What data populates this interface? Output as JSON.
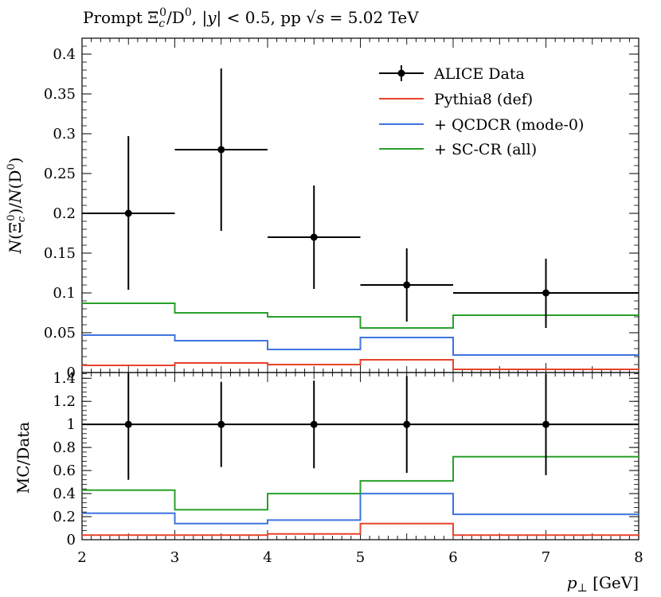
{
  "title": "Prompt Ξc0/D0, |y| < 0.5, pp √s = 5.02 TeV",
  "chart_data": [
    {
      "type": "line",
      "panel": "main",
      "ylabel": "N(Ξc0)/N(D0)",
      "xlim": [
        2,
        8
      ],
      "ylim": [
        0,
        0.42
      ],
      "bin_edges": [
        2,
        3,
        4,
        5,
        6,
        8
      ],
      "x_tick_labels": [
        "2",
        "3",
        "4",
        "5",
        "6",
        "7",
        "8"
      ],
      "y_ticks": [
        0,
        0.05,
        0.1,
        0.15,
        0.2,
        0.25,
        0.3,
        0.35,
        0.4
      ],
      "y_tick_labels": [
        "0",
        "0.05",
        "0.1",
        "0.15",
        "0.2",
        "0.25",
        "0.3",
        "0.35",
        "0.4"
      ],
      "data_points": {
        "name": "ALICE Data",
        "x": [
          2.5,
          3.5,
          4.5,
          5.5,
          7
        ],
        "y": [
          0.2,
          0.28,
          0.17,
          0.11,
          0.1
        ],
        "yerr_low": [
          0.096,
          0.102,
          0.065,
          0.046,
          0.044
        ],
        "yerr_high": [
          0.097,
          0.102,
          0.065,
          0.046,
          0.043
        ]
      },
      "series": [
        {
          "name": "Pythia8 (def)",
          "color": "#e8432a",
          "values": [
            0.009,
            0.012,
            0.01,
            0.016,
            0.004
          ]
        },
        {
          "name": "+ QCDCR (mode-0)",
          "color": "#3f73e0",
          "values": [
            0.047,
            0.04,
            0.029,
            0.044,
            0.022
          ]
        },
        {
          "name": "+ SC-CR (all)",
          "color": "#2aa02a",
          "values": [
            0.087,
            0.075,
            0.07,
            0.056,
            0.072
          ]
        }
      ],
      "legend_position": "top-right",
      "legend_labels": [
        "ALICE Data",
        "Pythia8 (def)",
        "+ QCDCR (mode-0)",
        "+ SC-CR (all)"
      ]
    },
    {
      "type": "line",
      "panel": "ratio",
      "ylabel": "MC/Data",
      "xlabel": "p⊥ [GeV]",
      "xlim": [
        2,
        8
      ],
      "ylim": [
        0,
        1.45
      ],
      "bin_edges": [
        2,
        3,
        4,
        5,
        6,
        8
      ],
      "y_ticks": [
        0,
        0.2,
        0.4,
        0.6,
        0.8,
        1,
        1.2,
        1.4
      ],
      "y_tick_labels": [
        "0",
        "0.2",
        "0.4",
        "0.6",
        "0.8",
        "1",
        "1.2",
        "1.4"
      ],
      "data_points": {
        "x": [
          2.5,
          3.5,
          4.5,
          5.5,
          7
        ],
        "y": [
          1,
          1,
          1,
          1,
          1
        ],
        "yerr_low": [
          0.48,
          0.37,
          0.38,
          0.42,
          0.44
        ],
        "yerr_high": [
          0.48,
          0.37,
          0.38,
          0.42,
          0.44
        ]
      },
      "series": [
        {
          "name": "Pythia8 (def)",
          "color": "#e8432a",
          "values": [
            0.04,
            0.04,
            0.05,
            0.14,
            0.04
          ]
        },
        {
          "name": "+ QCDCR (mode-0)",
          "color": "#3f73e0",
          "values": [
            0.23,
            0.14,
            0.17,
            0.4,
            0.22
          ]
        },
        {
          "name": "+ SC-CR (all)",
          "color": "#2aa02a",
          "values": [
            0.43,
            0.26,
            0.4,
            0.51,
            0.72
          ]
        }
      ]
    }
  ]
}
